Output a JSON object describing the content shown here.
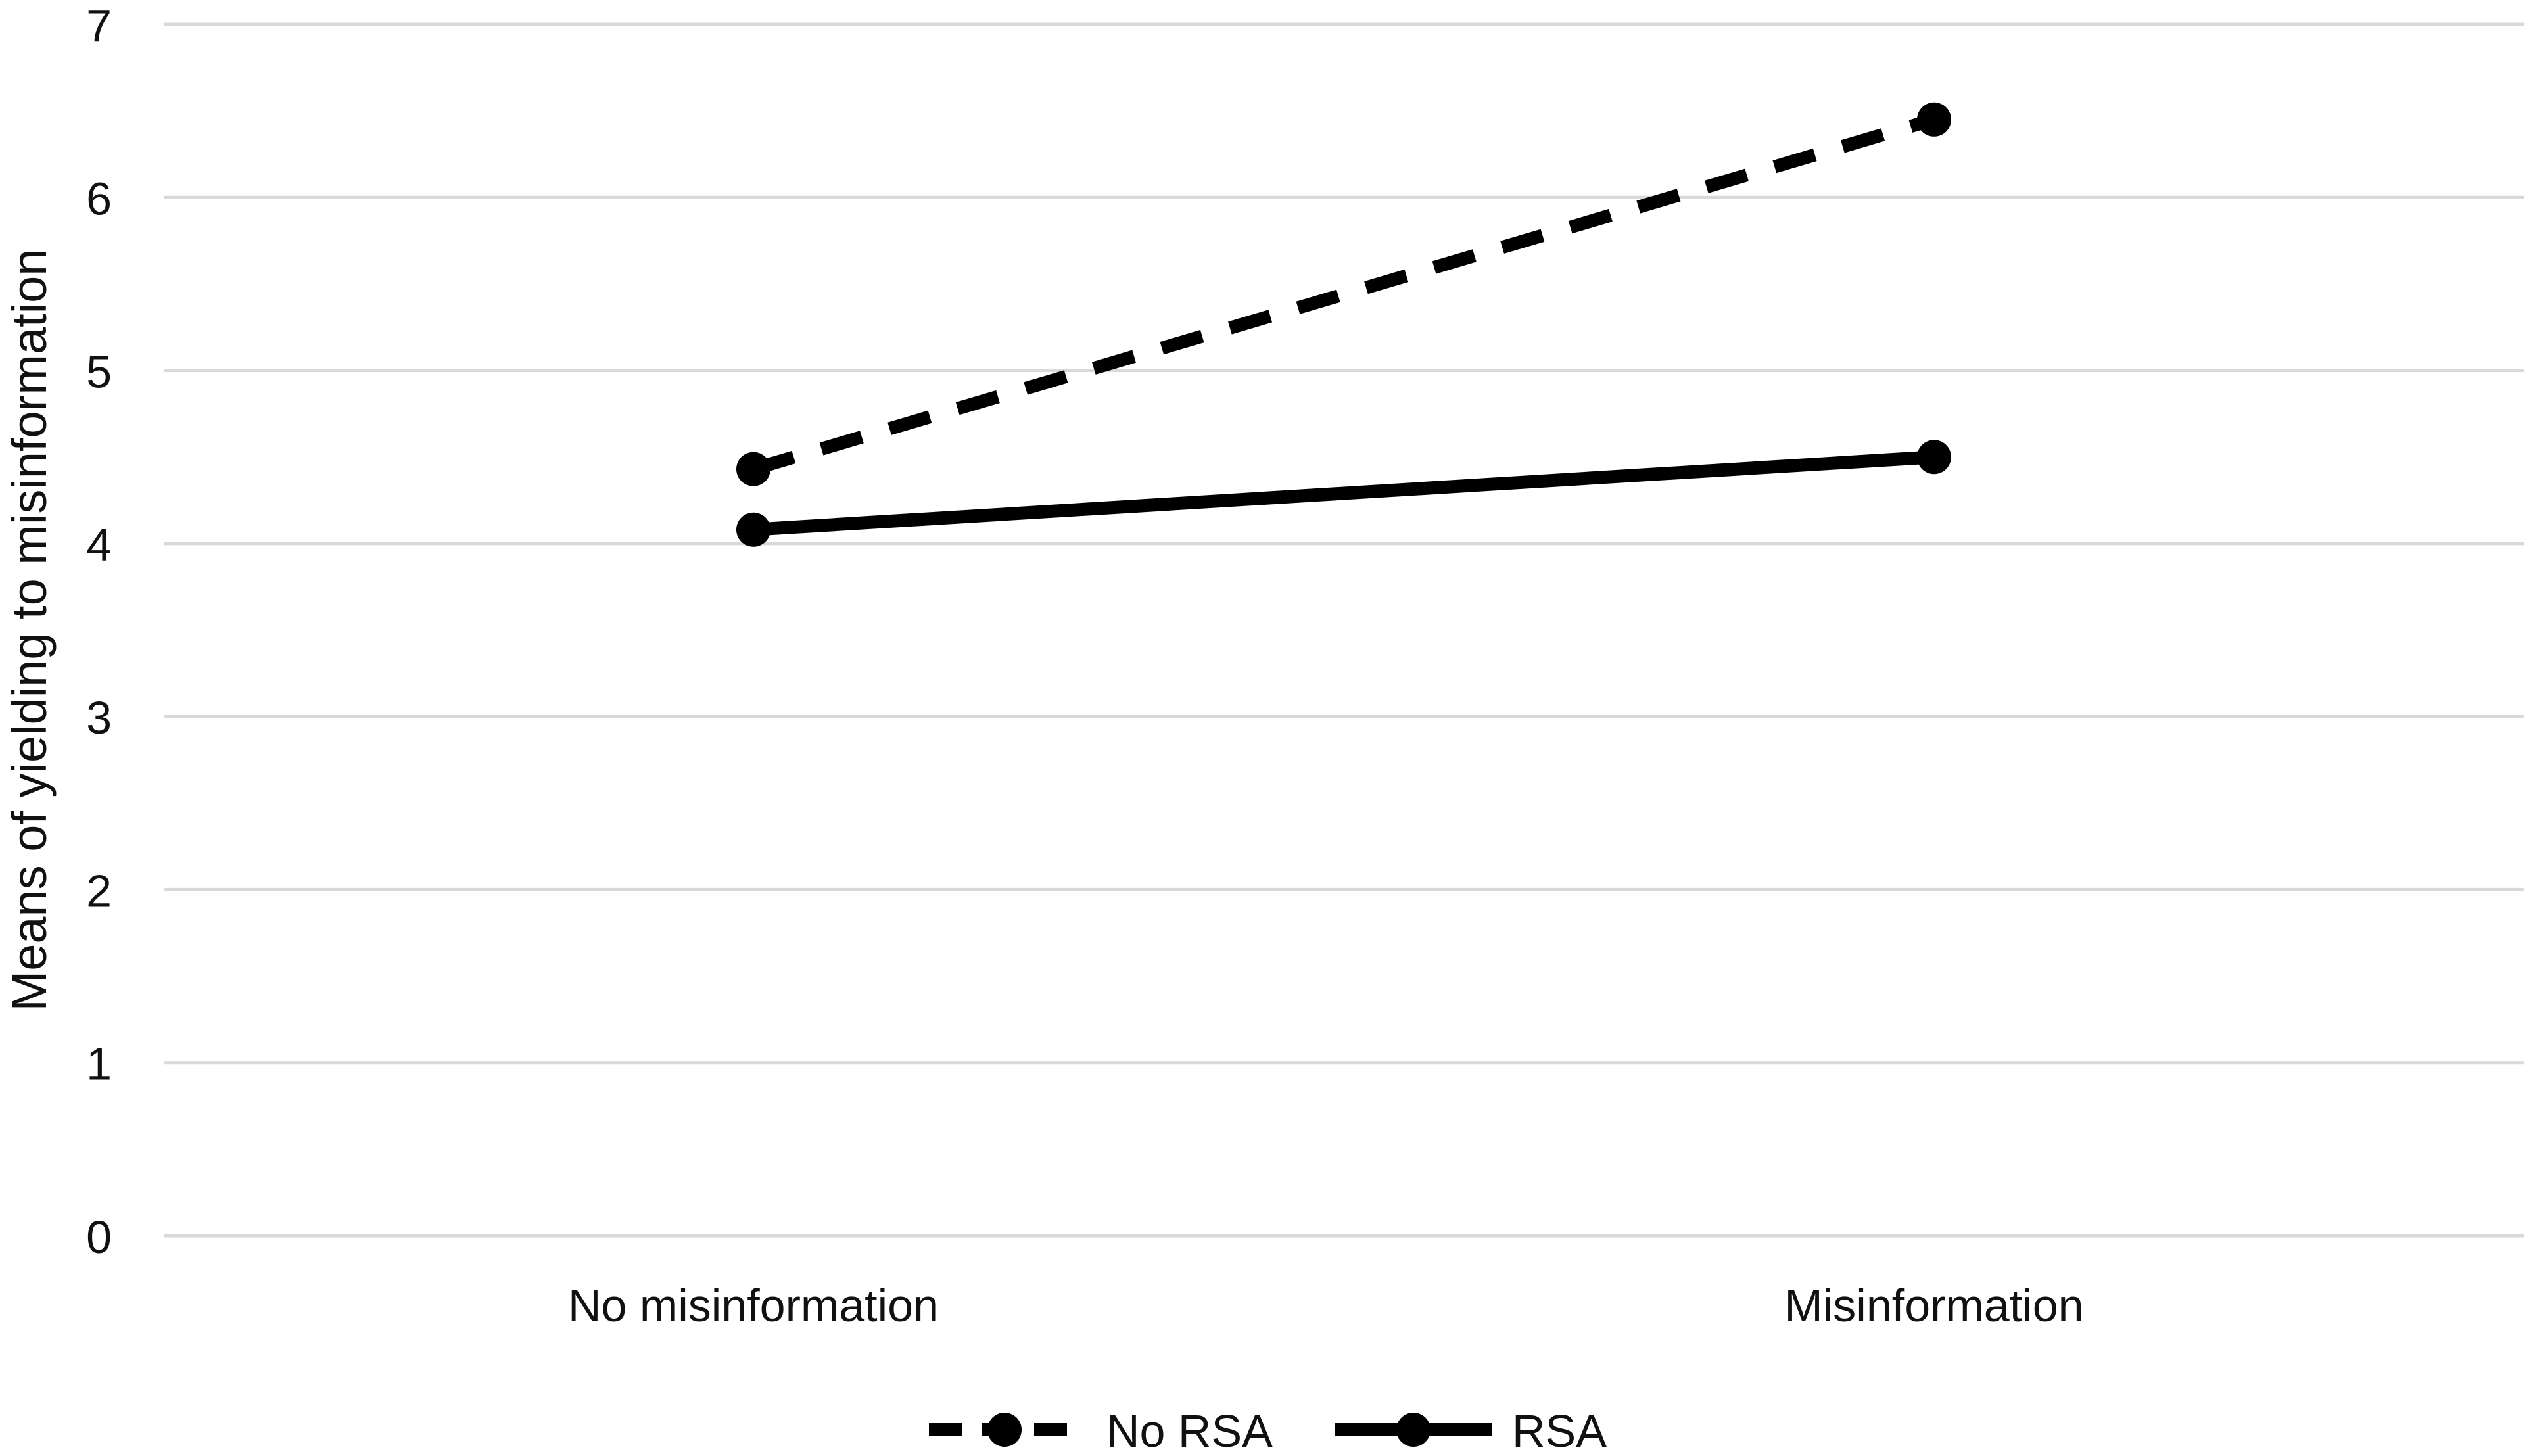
{
  "chart_data": {
    "type": "line",
    "title": "",
    "xlabel": "",
    "ylabel": "Means of yielding to misinformation",
    "categories": [
      "No misinformation",
      "Misinformation"
    ],
    "ylim": [
      0,
      7
    ],
    "yticks": [
      0,
      1,
      2,
      3,
      4,
      5,
      6,
      7
    ],
    "grid": true,
    "legend_position": "bottom",
    "series": [
      {
        "name": "No RSA",
        "values": [
          4.43,
          6.45
        ],
        "line_style": "dashed",
        "color": "#000000",
        "marker": "circle"
      },
      {
        "name": "RSA",
        "values": [
          4.08,
          4.5
        ],
        "line_style": "solid",
        "color": "#000000",
        "marker": "circle"
      }
    ]
  }
}
